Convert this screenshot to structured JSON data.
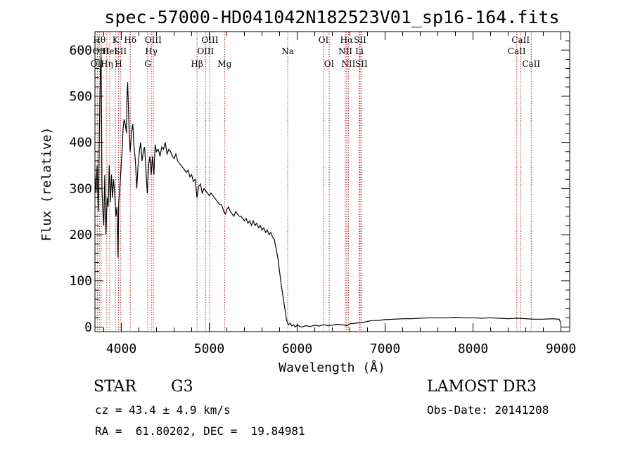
{
  "chart_data": {
    "type": "line",
    "title": "spec-57000-HD041042N182523V01_sp16-164.fits",
    "xlabel": "Wavelength (Å)",
    "ylabel": "Flux (relative)",
    "xlim": [
      3700,
      9100
    ],
    "ylim": [
      -10,
      640
    ],
    "x_ticks": [
      4000,
      5000,
      6000,
      7000,
      8000,
      9000
    ],
    "y_ticks": [
      0,
      100,
      200,
      300,
      400,
      500,
      600
    ],
    "series": [
      {
        "name": "spectrum",
        "points": [
          [
            3700,
            330
          ],
          [
            3712,
            290
          ],
          [
            3725,
            350
          ],
          [
            3738,
            250
          ],
          [
            3750,
            420
          ],
          [
            3762,
            560
          ],
          [
            3770,
            590
          ],
          [
            3780,
            300
          ],
          [
            3790,
            250
          ],
          [
            3800,
            220
          ],
          [
            3812,
            330
          ],
          [
            3825,
            200
          ],
          [
            3838,
            280
          ],
          [
            3850,
            260
          ],
          [
            3862,
            350
          ],
          [
            3875,
            270
          ],
          [
            3888,
            330
          ],
          [
            3900,
            280
          ],
          [
            3912,
            320
          ],
          [
            3925,
            290
          ],
          [
            3938,
            240
          ],
          [
            3950,
            260
          ],
          [
            3962,
            150
          ],
          [
            3970,
            270
          ],
          [
            3982,
            300
          ],
          [
            3995,
            340
          ],
          [
            4008,
            380
          ],
          [
            4020,
            430
          ],
          [
            4032,
            450
          ],
          [
            4045,
            440
          ],
          [
            4058,
            420
          ],
          [
            4065,
            500
          ],
          [
            4072,
            530
          ],
          [
            4080,
            480
          ],
          [
            4088,
            430
          ],
          [
            4101,
            380
          ],
          [
            4115,
            420
          ],
          [
            4130,
            440
          ],
          [
            4145,
            390
          ],
          [
            4160,
            360
          ],
          [
            4175,
            300
          ],
          [
            4190,
            350
          ],
          [
            4205,
            380
          ],
          [
            4220,
            400
          ],
          [
            4235,
            360
          ],
          [
            4250,
            380
          ],
          [
            4265,
            390
          ],
          [
            4280,
            340
          ],
          [
            4295,
            290
          ],
          [
            4310,
            350
          ],
          [
            4325,
            370
          ],
          [
            4340,
            330
          ],
          [
            4355,
            370
          ],
          [
            4370,
            330
          ],
          [
            4385,
            395
          ],
          [
            4400,
            380
          ],
          [
            4420,
            385
          ],
          [
            4440,
            370
          ],
          [
            4460,
            390
          ],
          [
            4480,
            385
          ],
          [
            4500,
            400
          ],
          [
            4520,
            375
          ],
          [
            4540,
            385
          ],
          [
            4560,
            380
          ],
          [
            4580,
            370
          ],
          [
            4600,
            365
          ],
          [
            4620,
            375
          ],
          [
            4640,
            360
          ],
          [
            4660,
            355
          ],
          [
            4680,
            350
          ],
          [
            4700,
            345
          ],
          [
            4720,
            340
          ],
          [
            4740,
            335
          ],
          [
            4760,
            340
          ],
          [
            4780,
            325
          ],
          [
            4800,
            330
          ],
          [
            4820,
            315
          ],
          [
            4840,
            320
          ],
          [
            4861,
            280
          ],
          [
            4880,
            305
          ],
          [
            4900,
            310
          ],
          [
            4920,
            290
          ],
          [
            4940,
            300
          ],
          [
            4960,
            295
          ],
          [
            4980,
            290
          ],
          [
            5000,
            285
          ],
          [
            5020,
            290
          ],
          [
            5040,
            285
          ],
          [
            5060,
            280
          ],
          [
            5080,
            275
          ],
          [
            5100,
            270
          ],
          [
            5120,
            265
          ],
          [
            5140,
            265
          ],
          [
            5167,
            250
          ],
          [
            5185,
            245
          ],
          [
            5200,
            255
          ],
          [
            5220,
            260
          ],
          [
            5240,
            250
          ],
          [
            5260,
            245
          ],
          [
            5280,
            240
          ],
          [
            5300,
            250
          ],
          [
            5320,
            245
          ],
          [
            5340,
            240
          ],
          [
            5360,
            240
          ],
          [
            5380,
            235
          ],
          [
            5400,
            230
          ],
          [
            5420,
            235
          ],
          [
            5440,
            225
          ],
          [
            5460,
            230
          ],
          [
            5480,
            220
          ],
          [
            5500,
            230
          ],
          [
            5520,
            220
          ],
          [
            5540,
            225
          ],
          [
            5560,
            215
          ],
          [
            5580,
            220
          ],
          [
            5600,
            210
          ],
          [
            5620,
            215
          ],
          [
            5640,
            205
          ],
          [
            5660,
            210
          ],
          [
            5680,
            200
          ],
          [
            5700,
            205
          ],
          [
            5720,
            195
          ],
          [
            5740,
            190
          ],
          [
            5760,
            170
          ],
          [
            5780,
            150
          ],
          [
            5800,
            120
          ],
          [
            5820,
            90
          ],
          [
            5840,
            65
          ],
          [
            5860,
            40
          ],
          [
            5880,
            15
          ],
          [
            5900,
            5
          ],
          [
            5920,
            8
          ],
          [
            5940,
            2
          ],
          [
            5960,
            5
          ],
          [
            5980,
            0
          ],
          [
            6000,
            4
          ],
          [
            6050,
            0
          ],
          [
            6100,
            3
          ],
          [
            6150,
            1
          ],
          [
            6200,
            4
          ],
          [
            6250,
            2
          ],
          [
            6300,
            5
          ],
          [
            6350,
            3
          ],
          [
            6400,
            4
          ],
          [
            6450,
            6
          ],
          [
            6500,
            5
          ],
          [
            6563,
            3
          ],
          [
            6600,
            7
          ],
          [
            6650,
            8
          ],
          [
            6700,
            9
          ],
          [
            6750,
            10
          ],
          [
            6800,
            12
          ],
          [
            6850,
            14
          ],
          [
            6900,
            14
          ],
          [
            6950,
            15
          ],
          [
            7000,
            16
          ],
          [
            7100,
            17
          ],
          [
            7200,
            18
          ],
          [
            7300,
            18
          ],
          [
            7400,
            19
          ],
          [
            7500,
            20
          ],
          [
            7600,
            20
          ],
          [
            7700,
            20
          ],
          [
            7800,
            21
          ],
          [
            7900,
            20
          ],
          [
            8000,
            20
          ],
          [
            8100,
            19
          ],
          [
            8200,
            20
          ],
          [
            8300,
            19
          ],
          [
            8400,
            18
          ],
          [
            8500,
            19
          ],
          [
            8600,
            18
          ],
          [
            8700,
            17
          ],
          [
            8800,
            17
          ],
          [
            8900,
            18
          ],
          [
            8980,
            17
          ],
          [
            9000,
            8
          ]
        ]
      }
    ],
    "line_markers": [
      {
        "x": 3727,
        "label": "OII",
        "row": 2
      },
      {
        "x": 3750,
        "label": "Hθ",
        "row": 0
      },
      {
        "x": 3770,
        "label": "OIII",
        "row": 1
      },
      {
        "x": 3835,
        "label": "Hη",
        "row": 2
      },
      {
        "x": 3868,
        "label": "HeI",
        "row": 1
      },
      {
        "x": 3934,
        "label": "K",
        "row": 0
      },
      {
        "x": 3969,
        "label": "H",
        "row": 2
      },
      {
        "x": 3990,
        "label": "SII",
        "row": 1
      },
      {
        "x": 4102,
        "label": "Hδ",
        "row": 0
      },
      {
        "x": 4300,
        "label": "G",
        "row": 2
      },
      {
        "x": 4341,
        "label": "Hγ",
        "row": 1
      },
      {
        "x": 4363,
        "label": "OIII",
        "row": 0
      },
      {
        "x": 4861,
        "label": "Hβ",
        "row": 2
      },
      {
        "x": 4959,
        "label": "OIII",
        "row": 1
      },
      {
        "x": 5007,
        "label": "OIII",
        "row": 0
      },
      {
        "x": 5175,
        "label": "Mg",
        "row": 2
      },
      {
        "x": 5893,
        "label": "Na",
        "row": 1
      },
      {
        "x": 6300,
        "label": "OI",
        "row": 0
      },
      {
        "x": 6364,
        "label": "OI",
        "row": 2
      },
      {
        "x": 6548,
        "label": "NII",
        "row": 1
      },
      {
        "x": 6563,
        "label": "Hα",
        "row": 0
      },
      {
        "x": 6583,
        "label": "NII",
        "row": 2
      },
      {
        "x": 6708,
        "label": "Li",
        "row": 1
      },
      {
        "x": 6716,
        "label": "SII",
        "row": 0
      },
      {
        "x": 6731,
        "label": "SII",
        "row": 2
      },
      {
        "x": 8498,
        "label": "CaII",
        "row": 1
      },
      {
        "x": 8542,
        "label": "CaII",
        "row": 0
      },
      {
        "x": 8662,
        "label": "CaII",
        "row": 2
      }
    ],
    "marker_color": "#b22222"
  },
  "info": {
    "class_label": "STAR",
    "subclass": "G3",
    "survey": "LAMOST DR3",
    "redshift": "cz = 43.4 ± 4.9 km/s",
    "obs_date": "Obs-Date: 20141208",
    "coords": "RA =  61.80202, DEC =  19.84981"
  }
}
